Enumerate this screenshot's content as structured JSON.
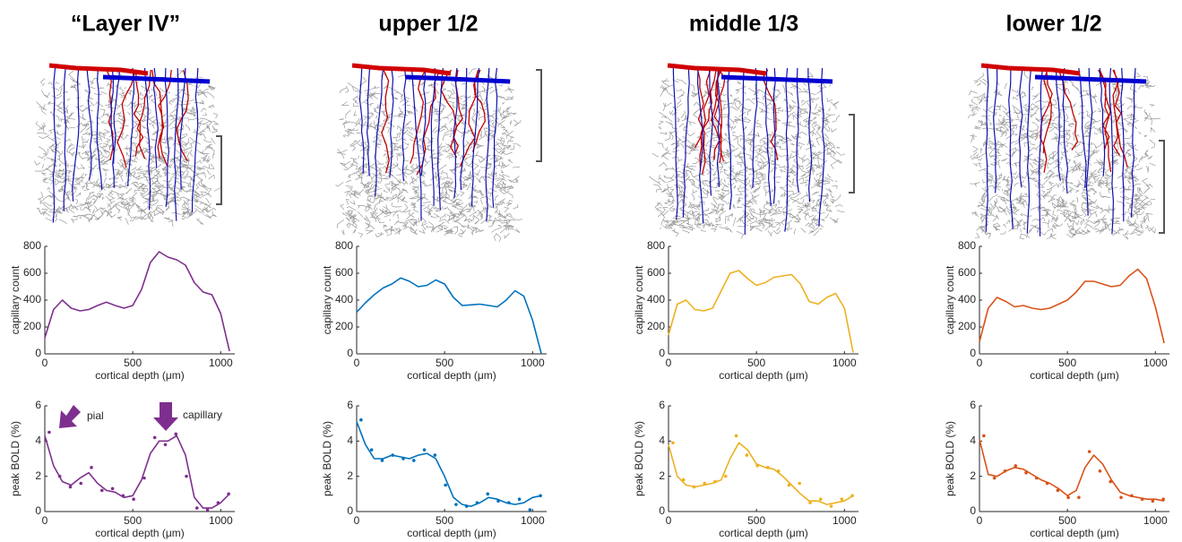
{
  "panels": [
    {
      "title": "“Layer IV”"
    },
    {
      "title": "upper 1/2"
    },
    {
      "title": "middle 1/3"
    },
    {
      "title": "lower 1/2"
    }
  ],
  "chart_data": [
    {
      "type": "line",
      "ylabel": "capillary count",
      "xlabel": "cortical depth (μm)",
      "xlim": [
        0,
        1080
      ],
      "ylim": [
        0,
        800
      ],
      "xticks": [
        0,
        500,
        1000
      ],
      "yticks": [
        0,
        200,
        400,
        600,
        800
      ],
      "series": [
        {
          "mode": "line",
          "color": "#7E2F8E",
          "x": [
            0,
            50,
            100,
            150,
            200,
            250,
            300,
            350,
            400,
            450,
            500,
            550,
            600,
            650,
            700,
            750,
            800,
            850,
            900,
            950,
            1000,
            1050
          ],
          "values": [
            120,
            330,
            400,
            340,
            320,
            330,
            360,
            385,
            360,
            340,
            360,
            480,
            680,
            760,
            720,
            700,
            660,
            530,
            460,
            440,
            300,
            20
          ]
        }
      ]
    },
    {
      "type": "line",
      "ylabel": "capillary count",
      "xlabel": "cortical depth (μm)",
      "xlim": [
        0,
        1080
      ],
      "ylim": [
        0,
        800
      ],
      "xticks": [
        0,
        500,
        1000
      ],
      "yticks": [
        0,
        200,
        400,
        600,
        800
      ],
      "series": [
        {
          "mode": "line",
          "color": "#0072BD",
          "x": [
            0,
            50,
            100,
            150,
            200,
            250,
            300,
            350,
            400,
            450,
            500,
            550,
            600,
            650,
            700,
            750,
            800,
            850,
            900,
            950,
            1000,
            1050
          ],
          "values": [
            310,
            380,
            440,
            490,
            520,
            565,
            540,
            500,
            510,
            550,
            520,
            420,
            360,
            365,
            370,
            360,
            350,
            400,
            470,
            430,
            250,
            0
          ]
        }
      ]
    },
    {
      "type": "line",
      "ylabel": "capillary count",
      "xlabel": "cortical depth (μm)",
      "xlim": [
        0,
        1080
      ],
      "ylim": [
        0,
        800
      ],
      "xticks": [
        0,
        500,
        1000
      ],
      "yticks": [
        0,
        200,
        400,
        600,
        800
      ],
      "series": [
        {
          "mode": "line",
          "color": "#EDB120",
          "x": [
            0,
            50,
            100,
            150,
            200,
            250,
            300,
            350,
            400,
            450,
            500,
            550,
            600,
            650,
            700,
            750,
            800,
            850,
            900,
            950,
            1000,
            1050
          ],
          "values": [
            140,
            370,
            400,
            330,
            320,
            340,
            470,
            600,
            620,
            560,
            510,
            530,
            570,
            580,
            590,
            520,
            390,
            370,
            420,
            450,
            340,
            10
          ]
        }
      ]
    },
    {
      "type": "line",
      "ylabel": "capillary count",
      "xlabel": "cortical depth (μm)",
      "xlim": [
        0,
        1080
      ],
      "ylim": [
        0,
        800
      ],
      "xticks": [
        0,
        500,
        1000
      ],
      "yticks": [
        0,
        200,
        400,
        600,
        800
      ],
      "series": [
        {
          "mode": "line",
          "color": "#D95319",
          "x": [
            0,
            50,
            100,
            150,
            200,
            250,
            300,
            350,
            400,
            450,
            500,
            550,
            600,
            650,
            700,
            750,
            800,
            850,
            900,
            950,
            1000,
            1050
          ],
          "values": [
            90,
            340,
            420,
            390,
            350,
            360,
            340,
            330,
            340,
            370,
            400,
            460,
            540,
            540,
            520,
            500,
            510,
            580,
            630,
            560,
            350,
            80
          ]
        }
      ]
    },
    {
      "type": "line",
      "ylabel": "peak BOLD (%)",
      "xlabel": "cortical depth (μm)",
      "xlim": [
        0,
        1080
      ],
      "ylim": [
        0,
        6
      ],
      "xticks": [
        0,
        500,
        1000
      ],
      "yticks": [
        0,
        2,
        4,
        6
      ],
      "annotations": [
        {
          "text": "pial"
        },
        {
          "text": "capillary"
        }
      ],
      "series": [
        {
          "mode": "line",
          "color": "#7E2F8E",
          "x": [
            0,
            50,
            100,
            150,
            200,
            250,
            300,
            350,
            400,
            450,
            500,
            550,
            600,
            650,
            700,
            750,
            800,
            850,
            900,
            950,
            1000,
            1050
          ],
          "values": [
            4.3,
            2.6,
            1.7,
            1.5,
            1.9,
            2.2,
            1.6,
            1.2,
            1.1,
            0.8,
            0.9,
            1.8,
            3.3,
            4.0,
            4.0,
            4.3,
            3.2,
            0.8,
            0.2,
            0.2,
            0.5,
            1.0
          ]
        },
        {
          "mode": "markers",
          "color": "#7E2F8E",
          "x": [
            25,
            85,
            145,
            205,
            265,
            325,
            385,
            445,
            505,
            565,
            625,
            685,
            745,
            805,
            865,
            925,
            985,
            1045
          ],
          "values": [
            4.5,
            2.0,
            1.4,
            1.6,
            2.5,
            1.2,
            1.3,
            0.9,
            0.7,
            1.9,
            4.2,
            3.8,
            4.4,
            2.0,
            0.2,
            0.1,
            0.5,
            1.0
          ]
        }
      ]
    },
    {
      "type": "line",
      "ylabel": "peak BOLD (%)",
      "xlabel": "cortical depth (μm)",
      "xlim": [
        0,
        1080
      ],
      "ylim": [
        0,
        6
      ],
      "xticks": [
        0,
        500,
        1000
      ],
      "yticks": [
        0,
        2,
        4,
        6
      ],
      "series": [
        {
          "mode": "line",
          "color": "#0072BD",
          "x": [
            0,
            50,
            100,
            150,
            200,
            250,
            300,
            350,
            400,
            450,
            500,
            550,
            600,
            650,
            700,
            750,
            800,
            850,
            900,
            950,
            1000,
            1050
          ],
          "values": [
            5.1,
            3.8,
            3.0,
            3.0,
            3.2,
            3.1,
            3.0,
            3.2,
            3.3,
            3.0,
            2.0,
            0.8,
            0.4,
            0.3,
            0.5,
            0.8,
            0.7,
            0.5,
            0.4,
            0.5,
            0.8,
            0.9
          ]
        },
        {
          "mode": "markers",
          "color": "#0072BD",
          "x": [
            25,
            85,
            145,
            205,
            265,
            325,
            385,
            445,
            505,
            565,
            625,
            685,
            745,
            805,
            865,
            925,
            985,
            1045
          ],
          "values": [
            5.2,
            3.5,
            2.9,
            3.2,
            3.0,
            2.9,
            3.5,
            3.2,
            1.5,
            0.4,
            0.3,
            0.5,
            1.0,
            0.6,
            0.5,
            0.7,
            0.1,
            0.9
          ]
        }
      ]
    },
    {
      "type": "line",
      "ylabel": "peak BOLD (%)",
      "xlabel": "cortical depth (μm)",
      "xlim": [
        0,
        1080
      ],
      "ylim": [
        0,
        6
      ],
      "xticks": [
        0,
        500,
        1000
      ],
      "yticks": [
        0,
        2,
        4,
        6
      ],
      "series": [
        {
          "mode": "line",
          "color": "#EDB120",
          "x": [
            0,
            50,
            100,
            150,
            200,
            250,
            300,
            350,
            400,
            450,
            500,
            550,
            600,
            650,
            700,
            750,
            800,
            850,
            900,
            950,
            1000,
            1050
          ],
          "values": [
            3.8,
            2.0,
            1.5,
            1.4,
            1.5,
            1.6,
            1.8,
            3.0,
            3.9,
            3.5,
            2.7,
            2.5,
            2.4,
            2.0,
            1.5,
            1.0,
            0.6,
            0.6,
            0.4,
            0.5,
            0.6,
            0.9
          ]
        },
        {
          "mode": "markers",
          "color": "#EDB120",
          "x": [
            25,
            85,
            145,
            205,
            265,
            325,
            385,
            445,
            505,
            565,
            625,
            685,
            745,
            805,
            865,
            925,
            985,
            1045
          ],
          "values": [
            3.9,
            1.8,
            1.4,
            1.6,
            1.7,
            2.0,
            4.3,
            3.2,
            2.6,
            2.5,
            2.3,
            1.5,
            1.6,
            0.5,
            0.7,
            0.3,
            0.7,
            0.9
          ]
        }
      ]
    },
    {
      "type": "line",
      "ylabel": "peak BOLD (%)",
      "xlabel": "cortical depth (μm)",
      "xlim": [
        0,
        1080
      ],
      "ylim": [
        0,
        6
      ],
      "xticks": [
        0,
        500,
        1000
      ],
      "yticks": [
        0,
        2,
        4,
        6
      ],
      "series": [
        {
          "mode": "line",
          "color": "#D95319",
          "x": [
            0,
            50,
            100,
            150,
            200,
            250,
            300,
            350,
            400,
            450,
            500,
            550,
            600,
            650,
            700,
            750,
            800,
            850,
            900,
            950,
            1000,
            1050
          ],
          "values": [
            4.1,
            2.1,
            2.0,
            2.3,
            2.5,
            2.4,
            2.1,
            1.8,
            1.6,
            1.3,
            0.9,
            1.2,
            2.5,
            3.2,
            2.7,
            1.8,
            1.1,
            0.9,
            0.8,
            0.7,
            0.7,
            0.6
          ]
        },
        {
          "mode": "markers",
          "color": "#D95319",
          "x": [
            25,
            85,
            145,
            205,
            265,
            325,
            385,
            445,
            505,
            565,
            625,
            685,
            745,
            805,
            865,
            925,
            985,
            1045
          ],
          "values": [
            4.3,
            1.9,
            2.3,
            2.6,
            2.2,
            1.9,
            1.6,
            1.2,
            0.8,
            0.8,
            3.4,
            2.3,
            1.7,
            0.8,
            0.9,
            0.7,
            0.6,
            0.7
          ]
        }
      ]
    }
  ]
}
